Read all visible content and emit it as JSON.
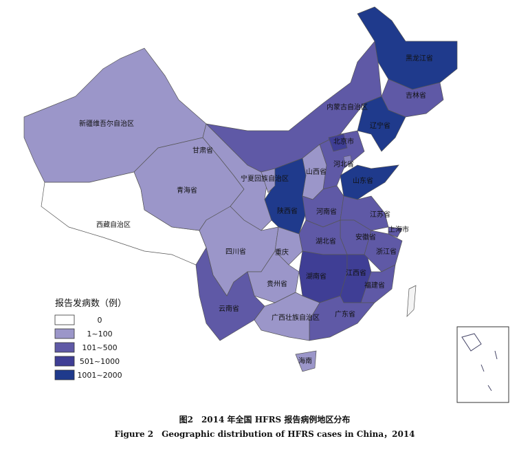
{
  "legend": {
    "title": "报告发病数（例）",
    "items": [
      {
        "label": "0",
        "color": "#ffffff"
      },
      {
        "label": "1~100",
        "color": "#9b96c9"
      },
      {
        "label": "101~500",
        "color": "#5f59a6"
      },
      {
        "label": "501~1000",
        "color": "#3f3e95"
      },
      {
        "label": "1001~2000",
        "color": "#1f3a8c"
      }
    ]
  },
  "regions": [
    {
      "name": "新疆维吾尔自治区",
      "level": 1
    },
    {
      "name": "西藏自治区",
      "level": 0
    },
    {
      "name": "青海省",
      "level": 1
    },
    {
      "name": "甘肃省",
      "level": 1
    },
    {
      "name": "内蒙古自治区",
      "level": 2
    },
    {
      "name": "黑龙江省",
      "level": 4
    },
    {
      "name": "吉林省",
      "level": 2
    },
    {
      "name": "辽宁省",
      "level": 4
    },
    {
      "name": "北京市",
      "level": 3
    },
    {
      "name": "河北省",
      "level": 2
    },
    {
      "name": "山西省",
      "level": 1
    },
    {
      "name": "山东省",
      "level": 4
    },
    {
      "name": "陕西省",
      "level": 4
    },
    {
      "name": "宁夏回族自治区",
      "level": 1
    },
    {
      "name": "河南省",
      "level": 2
    },
    {
      "name": "江苏省",
      "level": 2
    },
    {
      "name": "上海市",
      "level": 2
    },
    {
      "name": "安徽省",
      "level": 2
    },
    {
      "name": "湖北省",
      "level": 2
    },
    {
      "name": "浙江省",
      "level": 2
    },
    {
      "name": "四川省",
      "level": 1
    },
    {
      "name": "重庆",
      "level": 1
    },
    {
      "name": "贵州省",
      "level": 1
    },
    {
      "name": "云南省",
      "level": 2
    },
    {
      "name": "湖南省",
      "level": 3
    },
    {
      "name": "江西省",
      "level": 3
    },
    {
      "name": "福建省",
      "level": 2
    },
    {
      "name": "广东省",
      "level": 2
    },
    {
      "name": "广西壮族自治区",
      "level": 1
    },
    {
      "name": "海南",
      "level": 1
    }
  ],
  "caption": {
    "zh": "图2　2014 年全国 HFRS 报告病例地区分布",
    "en": "Figure 2　Geographic distribution of HFRS cases in China，2014"
  }
}
